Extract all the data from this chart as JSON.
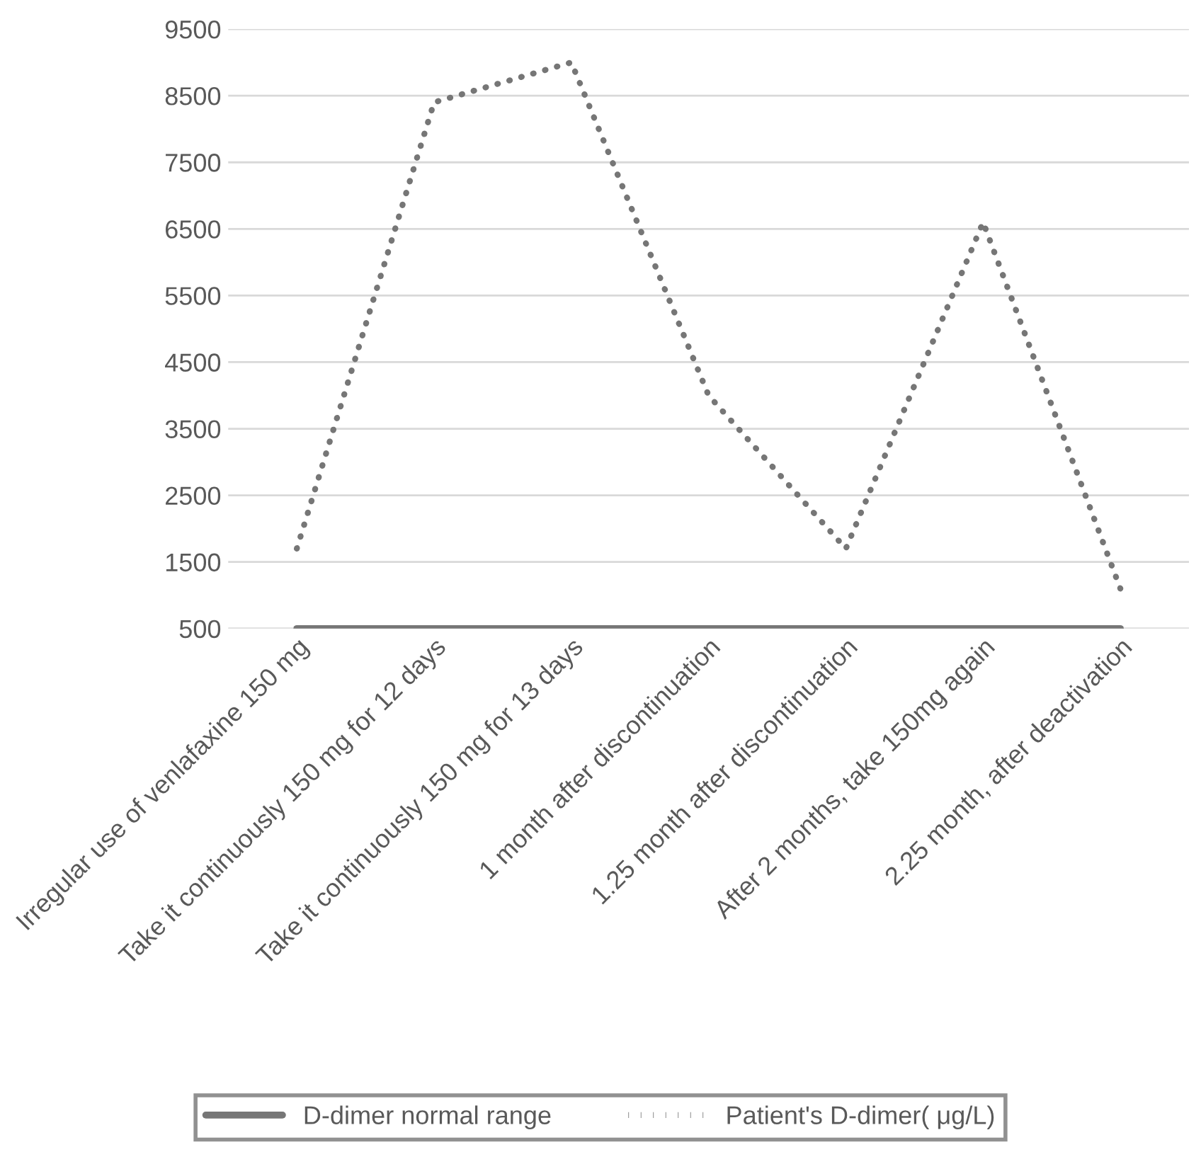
{
  "chart_data": {
    "type": "line",
    "categories": [
      "Irregular use of venlafaxine 150 mg",
      "Take it continuously 150 mg for 12 days",
      "Take it continuously 150 mg for 13 days",
      "1 month after discontinuation",
      "1.25 month after discontinuation",
      "After 2 months, take 150mg again",
      "2.25 month, after deactivation"
    ],
    "series": [
      {
        "name": "D-dimer normal range",
        "color": "#767676",
        "line_style": "solid",
        "values": [
          500,
          500,
          500,
          500,
          500,
          500,
          500
        ]
      },
      {
        "name": "Patient's D-dimer( μg/L)",
        "color": "#767676",
        "line_style": "dotted",
        "values": [
          1700,
          8400,
          9000,
          4000,
          1700,
          6600,
          1100
        ]
      }
    ],
    "ylim": [
      500,
      9500
    ],
    "yticks": [
      500,
      1500,
      2500,
      3500,
      4500,
      5500,
      6500,
      7500,
      8500,
      9500
    ],
    "grid": "y",
    "legend": "bottom"
  }
}
